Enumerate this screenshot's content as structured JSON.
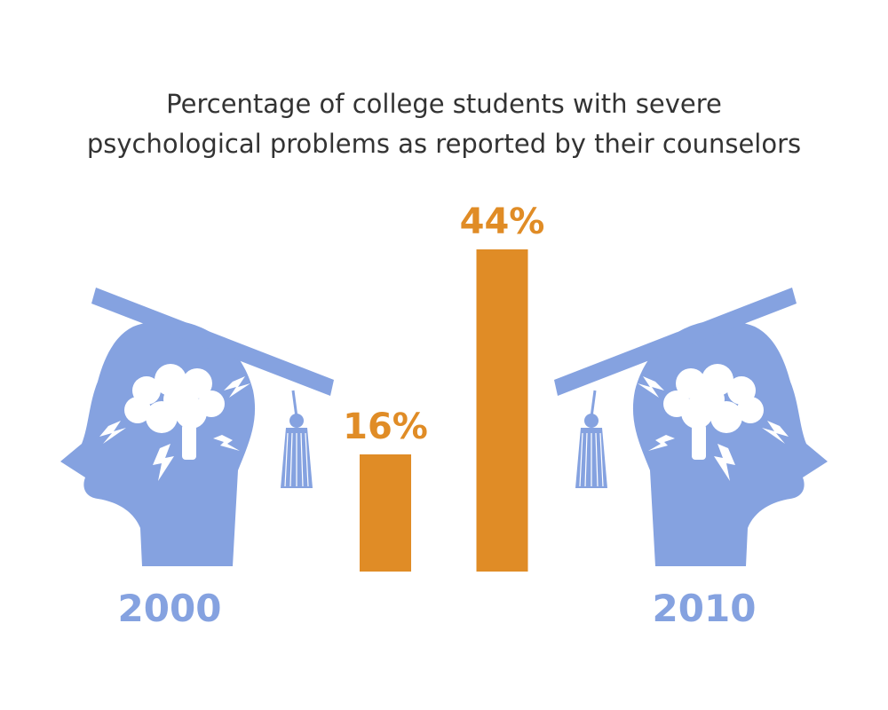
{
  "chart_data": {
    "type": "bar",
    "title": [
      "Percentage of college students with severe",
      "psychological problems as reported by their counselors"
    ],
    "categories": [
      "2000",
      "2010"
    ],
    "values": [
      16,
      44
    ],
    "value_labels": [
      "16%",
      "44%"
    ],
    "color": "#e08c26"
  }
}
